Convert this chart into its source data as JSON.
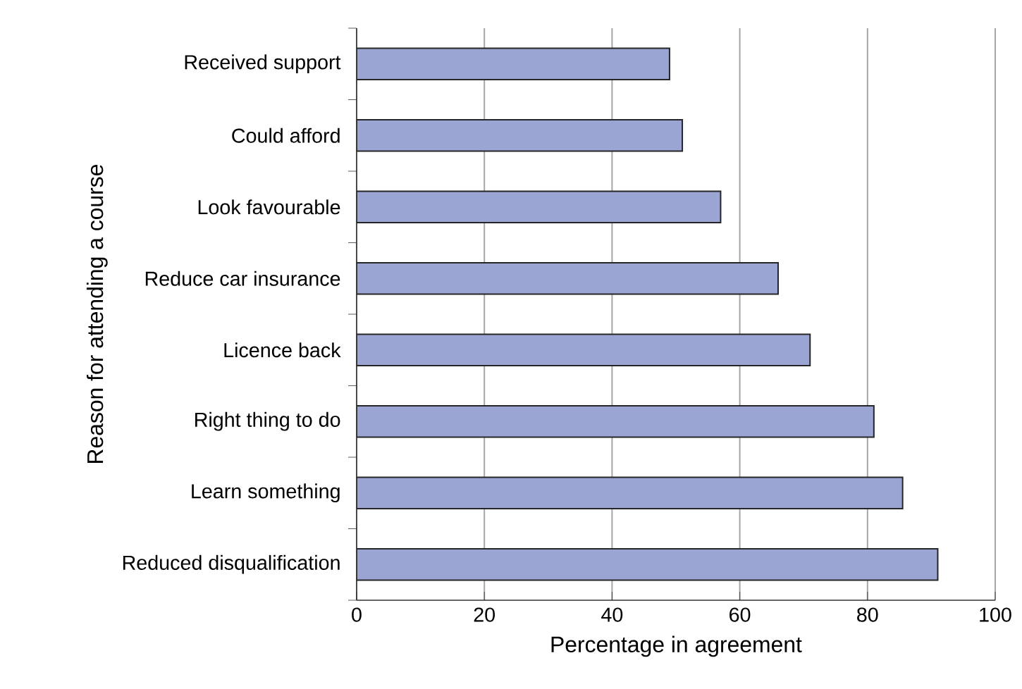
{
  "chart_data": {
    "type": "bar",
    "orientation": "horizontal",
    "xlabel": "Percentage in agreement",
    "ylabel": "Reason for attending a course",
    "categories": [
      "Received support",
      "Could afford",
      "Look favourable",
      "Reduce car insurance",
      "Licence back",
      "Right thing to do",
      "Learn something",
      "Reduced disqualification"
    ],
    "values": [
      49,
      51,
      57,
      66,
      71,
      81,
      85.5,
      91
    ],
    "color": "#9aa5d4",
    "xlim": [
      0,
      100
    ],
    "xticks": [
      0,
      20,
      40,
      60,
      80,
      100
    ],
    "grid": "x"
  }
}
